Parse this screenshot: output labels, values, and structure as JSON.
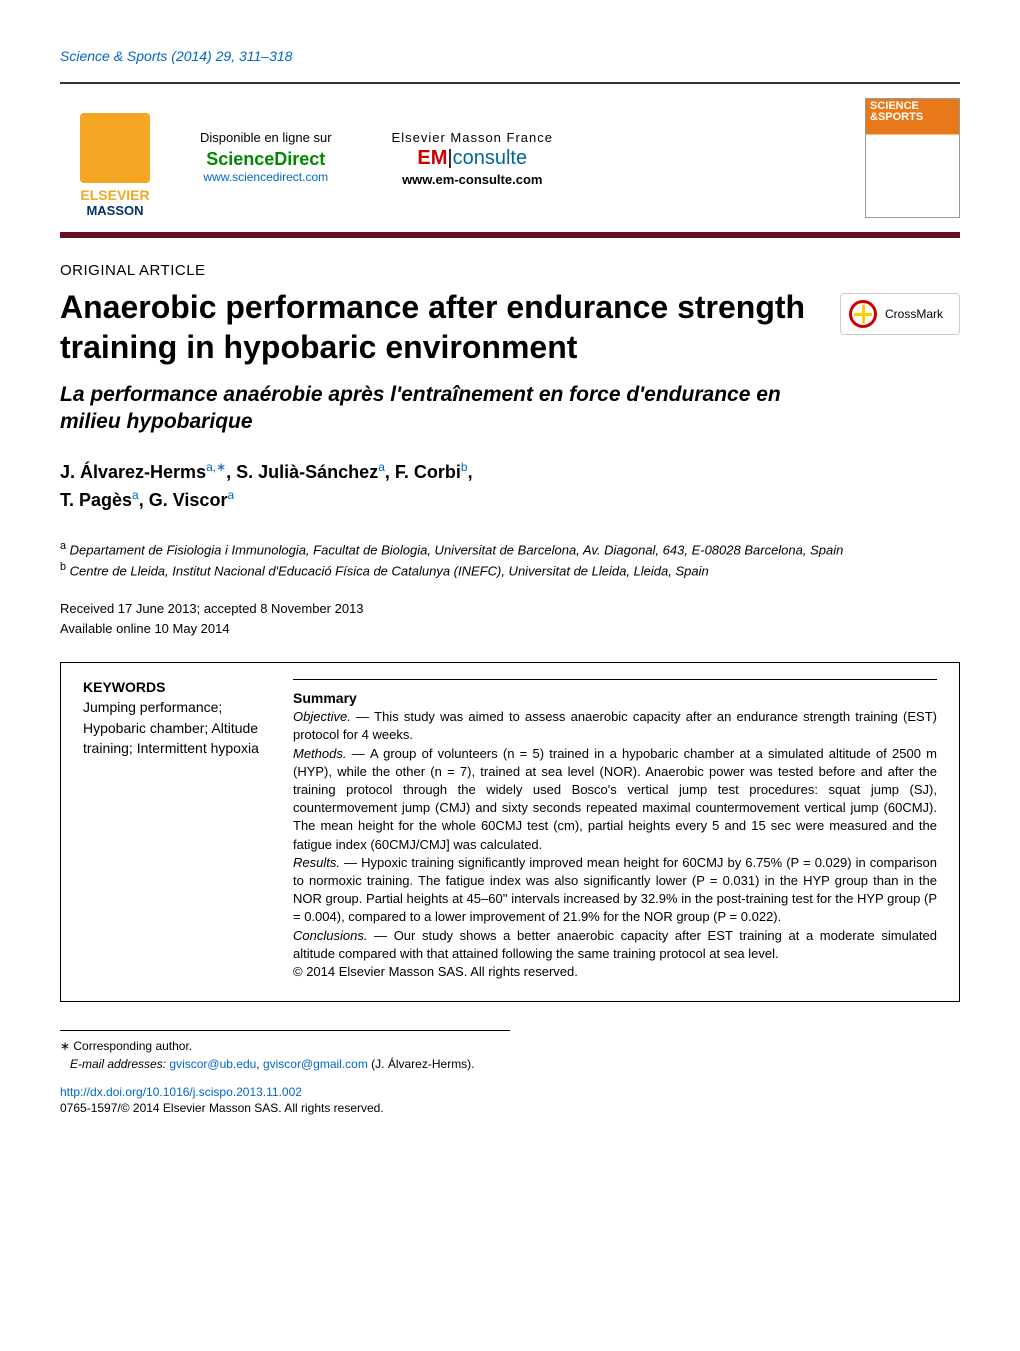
{
  "journal_ref": "Science & Sports (2014) 29, 311–318",
  "header": {
    "elsevier": "ELSEVIER",
    "masson": "MASSON",
    "disponible": "Disponible en ligne sur",
    "sciencedirect": "ScienceDirect",
    "sd_url": "www.sciencedirect.com",
    "emf_label": "Elsevier Masson France",
    "em_em": "EM",
    "em_consulte": "consulte",
    "em_url": "www.em-consulte.com",
    "cover_title": "SCIENCE &SPORTS"
  },
  "article_type": "ORIGINAL ARTICLE",
  "title": "Anaerobic performance after endurance strength training in hypobaric environment",
  "subtitle": "La performance anaérobie après l'entraînement en force d'endurance en milieu hypobarique",
  "crossmark": "CrossMark",
  "authors_line1": "J. Álvarez-Herms",
  "authors_sup1": "a,∗",
  "authors_line1b": ", S. Julià-Sánchez",
  "authors_sup2": "a",
  "authors_line1c": ", F. Corbi",
  "authors_sup3": "b",
  "authors_line1d": ",",
  "authors_line2": "T. Pagès",
  "authors_sup4": "a",
  "authors_line2b": ", G. Viscor",
  "authors_sup5": "a",
  "affil_a_sup": "a",
  "affil_a": " Departament de Fisiologia i Immunologia, Facultat de Biologia, Universitat de Barcelona, Av. Diagonal, 643, E-08028 Barcelona, Spain",
  "affil_b_sup": "b",
  "affil_b": " Centre de Lleida, Institut Nacional d'Educació Física de Catalunya (INEFC), Universitat de Lleida, Lleida, Spain",
  "dates_line1": "Received 17 June 2013; accepted 8 November 2013",
  "dates_line2": "Available online 10 May 2014",
  "keywords_head": "KEYWORDS",
  "keywords": "Jumping performance; Hypobaric chamber; Altitude training; Intermittent hypoxia",
  "summary_head": "Summary",
  "objective_label": "Objective. — ",
  "objective": "This study was aimed to assess anaerobic capacity after an endurance strength training (EST) protocol for 4 weeks.",
  "methods_label": "Methods. — ",
  "methods": "A group of volunteers (n = 5) trained in a hypobaric chamber at a simulated altitude of 2500 m (HYP), while the other (n = 7), trained at sea level (NOR). Anaerobic power was tested before and after the training protocol through the widely used Bosco's vertical jump test procedures: squat jump (SJ), countermovement jump (CMJ) and sixty seconds repeated maximal countermovement vertical jump (60CMJ). The mean height for the whole 60CMJ test (cm), partial heights every 5 and 15 sec were measured and the fatigue index (60CMJ/CMJ] was calculated.",
  "results_label": "Results. — ",
  "results": "Hypoxic training significantly improved mean height for 60CMJ by 6.75% (P = 0.029) in comparison to normoxic training. The fatigue index was also significantly lower (P = 0.031) in the HYP group than in the NOR group. Partial heights at 45–60'' intervals increased by 32.9% in the post-training test for the HYP group (P = 0.004), compared to a lower improvement of 21.9% for the NOR group (P = 0.022).",
  "conclusions_label": "Conclusions. — ",
  "conclusions": "Our study shows a better anaerobic capacity after EST training at a moderate simulated altitude compared with that attained following the same training protocol at sea level.",
  "abs_copyright": "© 2014 Elsevier Masson SAS. All rights reserved.",
  "corr_star": "∗ Corresponding author.",
  "corr_email_label": "E-mail addresses: ",
  "corr_email1": "gviscor@ub.edu",
  "corr_email_sep": ", ",
  "corr_email2": "gviscor@gmail.com",
  "corr_email_suffix": " (J. Álvarez-Herms).",
  "doi": "http://dx.doi.org/10.1016/j.scispo.2013.11.002",
  "issn_copyright": "0765-1597/© 2014 Elsevier Masson SAS. All rights reserved.",
  "colors": {
    "link": "#0066cc",
    "band_bottom": "#6b1020",
    "elsevier_orange": "#f5a623",
    "masson_blue": "#003366",
    "sd_green": "#008800",
    "em_red": "#cc0000",
    "em_blue": "#006699"
  }
}
